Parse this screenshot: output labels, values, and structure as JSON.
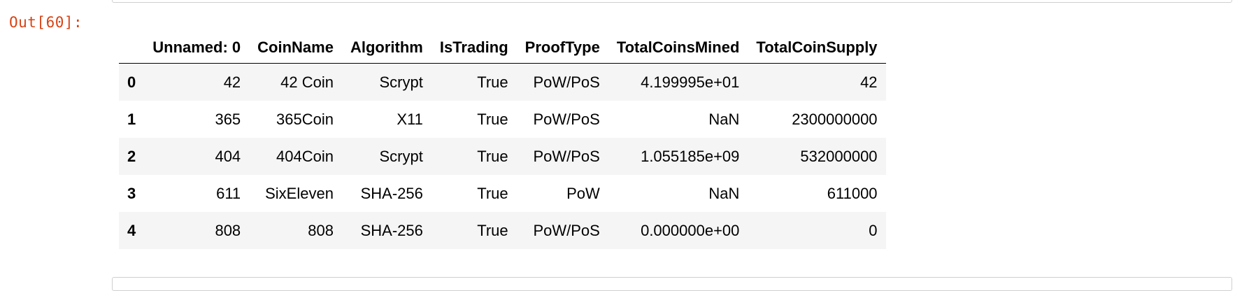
{
  "notebook": {
    "prompt": "Out[60]:"
  },
  "dataframe": {
    "index_header": "",
    "columns": [
      "Unnamed: 0",
      "CoinName",
      "Algorithm",
      "IsTrading",
      "ProofType",
      "TotalCoinsMined",
      "TotalCoinSupply"
    ],
    "rows": [
      {
        "index": "0",
        "cells": [
          "42",
          "42 Coin",
          "Scrypt",
          "True",
          "PoW/PoS",
          "4.199995e+01",
          "42"
        ]
      },
      {
        "index": "1",
        "cells": [
          "365",
          "365Coin",
          "X11",
          "True",
          "PoW/PoS",
          "NaN",
          "2300000000"
        ]
      },
      {
        "index": "2",
        "cells": [
          "404",
          "404Coin",
          "Scrypt",
          "True",
          "PoW/PoS",
          "1.055185e+09",
          "532000000"
        ]
      },
      {
        "index": "3",
        "cells": [
          "611",
          "SixEleven",
          "SHA-256",
          "True",
          "PoW",
          "NaN",
          "611000"
        ]
      },
      {
        "index": "4",
        "cells": [
          "808",
          "808",
          "SHA-256",
          "True",
          "PoW/PoS",
          "0.000000e+00",
          "0"
        ]
      }
    ]
  },
  "colors": {
    "prompt": "#d84315",
    "stripe": "#f5f5f5"
  }
}
